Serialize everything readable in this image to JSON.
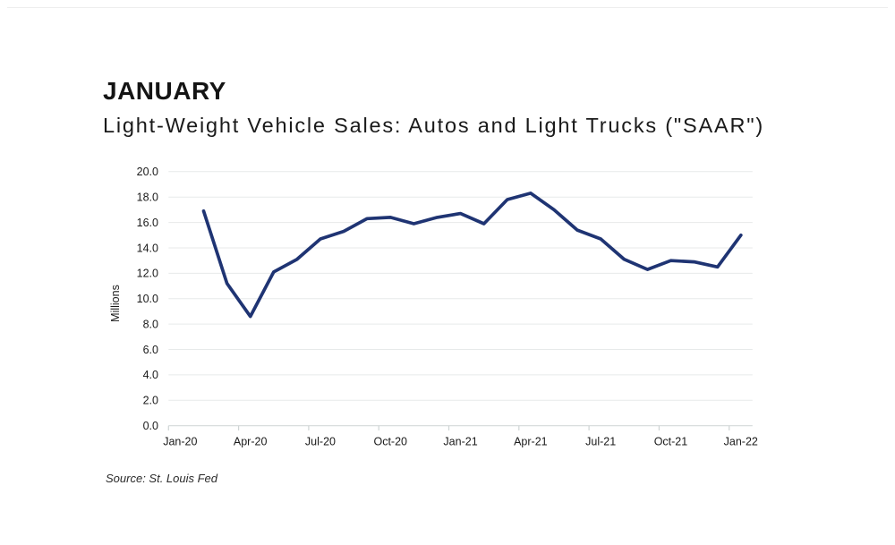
{
  "page": {
    "title": "JANUARY",
    "subtitle": "Light-Weight Vehicle Sales: Autos and Light Trucks (\"SAAR\")",
    "source": "Source: St. Louis Fed"
  },
  "colors": {
    "line": "#1f3473",
    "gridline": "#e7eaea",
    "axis": "#d4d9d9",
    "tick": "#cfd5d5",
    "text": "#1a1a1a"
  },
  "chart_data": {
    "type": "line",
    "title": "JANUARY",
    "subtitle": "Light-Weight Vehicle Sales: Autos and Light Trucks (\"SAAR\")",
    "xlabel": "",
    "ylabel": "Millions",
    "ylim": [
      0,
      20
    ],
    "grid": true,
    "legend_position": "none",
    "yticks": [
      {
        "value": 0,
        "label": "0.0"
      },
      {
        "value": 2,
        "label": "2.0"
      },
      {
        "value": 4,
        "label": "4.0"
      },
      {
        "value": 6,
        "label": "6.0"
      },
      {
        "value": 8,
        "label": "8.0"
      },
      {
        "value": 10,
        "label": "10.0"
      },
      {
        "value": 12,
        "label": "12.0"
      },
      {
        "value": 14,
        "label": "14.0"
      },
      {
        "value": 16,
        "label": "16.0"
      },
      {
        "value": 18,
        "label": "18.0"
      },
      {
        "value": 20,
        "label": "20.0"
      }
    ],
    "x_axis": {
      "slot_count": 25,
      "first_month": "Jan-20",
      "last_month": "Jan-22",
      "tick_interval_slots": 3,
      "ticks": [
        {
          "label": "Jan-20",
          "slot": 0
        },
        {
          "label": "Apr-20",
          "slot": 3
        },
        {
          "label": "Jul-20",
          "slot": 6
        },
        {
          "label": "Oct-20",
          "slot": 9
        },
        {
          "label": "Jan-21",
          "slot": 12
        },
        {
          "label": "Apr-21",
          "slot": 15
        },
        {
          "label": "Jul-21",
          "slot": 18
        },
        {
          "label": "Oct-21",
          "slot": 21
        },
        {
          "label": "Jan-22",
          "slot": 24
        }
      ]
    },
    "series": [
      {
        "name": "Light-Weight Vehicle Sales: Autos and Light Trucks (SAAR, Millions)",
        "color": "#1f3473",
        "start_slot": 1,
        "x": [
          "Feb-20",
          "Mar-20",
          "Apr-20",
          "May-20",
          "Jun-20",
          "Jul-20",
          "Aug-20",
          "Sep-20",
          "Oct-20",
          "Nov-20",
          "Dec-20",
          "Jan-21",
          "Feb-21",
          "Mar-21",
          "Apr-21",
          "May-21",
          "Jun-21",
          "Jul-21",
          "Aug-21",
          "Sep-21",
          "Oct-21",
          "Nov-21",
          "Dec-21",
          "Jan-22"
        ],
        "values": [
          16.9,
          11.2,
          8.6,
          12.1,
          13.1,
          14.7,
          15.3,
          16.3,
          16.4,
          15.9,
          16.4,
          16.7,
          15.9,
          17.8,
          18.3,
          17.0,
          15.4,
          14.7,
          13.1,
          12.3,
          13.0,
          12.9,
          12.5,
          15.0
        ]
      }
    ],
    "source": "Source: St. Louis Fed"
  }
}
